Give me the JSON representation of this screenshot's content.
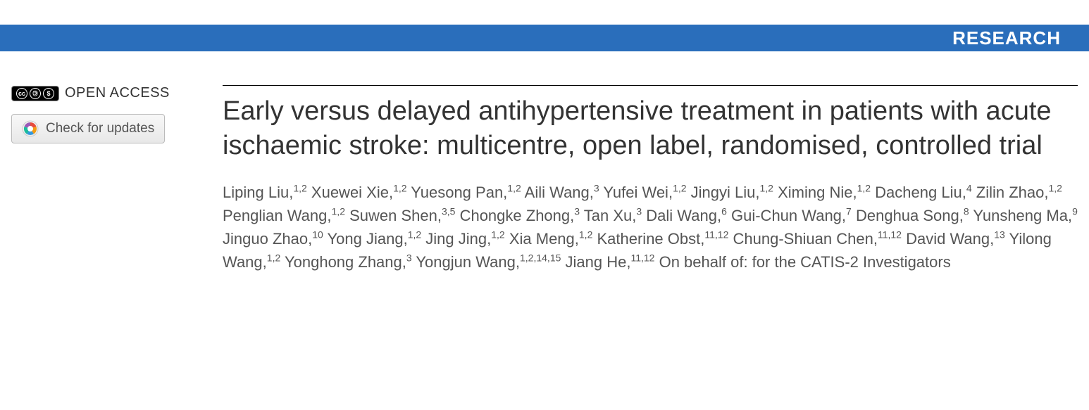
{
  "header": {
    "section_label": "RESEARCH",
    "bar_color": "#2a6ebb",
    "text_color": "#ffffff"
  },
  "badges": {
    "open_access_label": "OPEN ACCESS",
    "check_updates_label": "Check for updates"
  },
  "article": {
    "title": "Early versus delayed antihypertensive treatment in patients with acute ischaemic stroke: multicentre, open label, randomised, controlled trial",
    "authors": [
      {
        "name": "Liping Liu",
        "affil": "1,2"
      },
      {
        "name": "Xuewei Xie",
        "affil": "1,2"
      },
      {
        "name": "Yuesong Pan",
        "affil": "1,2"
      },
      {
        "name": "Aili Wang",
        "affil": "3"
      },
      {
        "name": "Yufei Wei",
        "affil": "1,2"
      },
      {
        "name": "Jingyi Liu",
        "affil": "1,2"
      },
      {
        "name": "Ximing Nie",
        "affil": "1,2"
      },
      {
        "name": "Dacheng Liu",
        "affil": "4"
      },
      {
        "name": "Zilin Zhao",
        "affil": "1,2"
      },
      {
        "name": "Penglian Wang",
        "affil": "1,2"
      },
      {
        "name": "Suwen Shen",
        "affil": "3,5"
      },
      {
        "name": "Chongke Zhong",
        "affil": "3"
      },
      {
        "name": "Tan Xu",
        "affil": "3"
      },
      {
        "name": "Dali Wang",
        "affil": "6"
      },
      {
        "name": "Gui-Chun Wang",
        "affil": "7"
      },
      {
        "name": "Denghua Song",
        "affil": "8"
      },
      {
        "name": "Yunsheng Ma",
        "affil": "9"
      },
      {
        "name": "Jinguo Zhao",
        "affil": "10"
      },
      {
        "name": "Yong Jiang",
        "affil": "1,2"
      },
      {
        "name": "Jing Jing",
        "affil": "1,2"
      },
      {
        "name": "Xia Meng",
        "affil": "1,2"
      },
      {
        "name": "Katherine Obst",
        "affil": "11,12"
      },
      {
        "name": "Chung-Shiuan Chen",
        "affil": "11,12"
      },
      {
        "name": "David Wang",
        "affil": "13"
      },
      {
        "name": "Yilong Wang",
        "affil": "1,2"
      },
      {
        "name": "Yonghong Zhang",
        "affil": "3"
      },
      {
        "name": "Yongjun Wang",
        "affil": "1,2,14,15"
      },
      {
        "name": "Jiang He",
        "affil": "11,12"
      }
    ],
    "on_behalf": "On behalf of: for the CATIS-2 Investigators"
  },
  "colors": {
    "header_bar": "#2a6ebb",
    "title_text": "#333333",
    "author_text": "#555555",
    "divider": "#000000",
    "background": "#ffffff"
  },
  "typography": {
    "title_fontsize": 38,
    "author_fontsize": 22,
    "header_fontsize": 26,
    "open_access_fontsize": 20
  }
}
